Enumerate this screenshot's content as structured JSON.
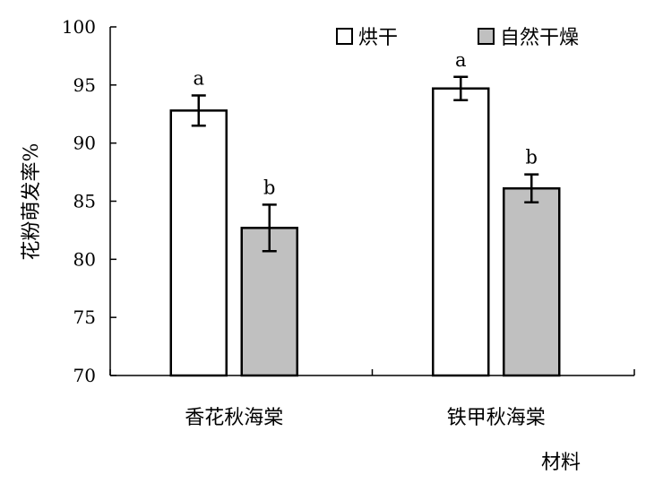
{
  "chart_data": {
    "type": "bar",
    "categories": [
      "香花秋海棠",
      "铁甲秋海棠"
    ],
    "series": [
      {
        "name": "烘干",
        "values": [
          92.8,
          94.7
        ],
        "errors": [
          1.3,
          1.0
        ],
        "letters": [
          "a",
          "a"
        ],
        "color": "#ffffff"
      },
      {
        "name": "自然干燥",
        "values": [
          82.7,
          86.1
        ],
        "errors": [
          2.0,
          1.2
        ],
        "letters": [
          "b",
          "b"
        ],
        "color": "#c0c0c0"
      }
    ],
    "ylabel": "花粉萌发率%",
    "xlabel": "材料",
    "ylim": [
      70,
      100
    ],
    "yticks": [
      "70",
      "75",
      "80",
      "85",
      "90",
      "95",
      "100"
    ],
    "grid": false,
    "legend_position": "top-right"
  }
}
